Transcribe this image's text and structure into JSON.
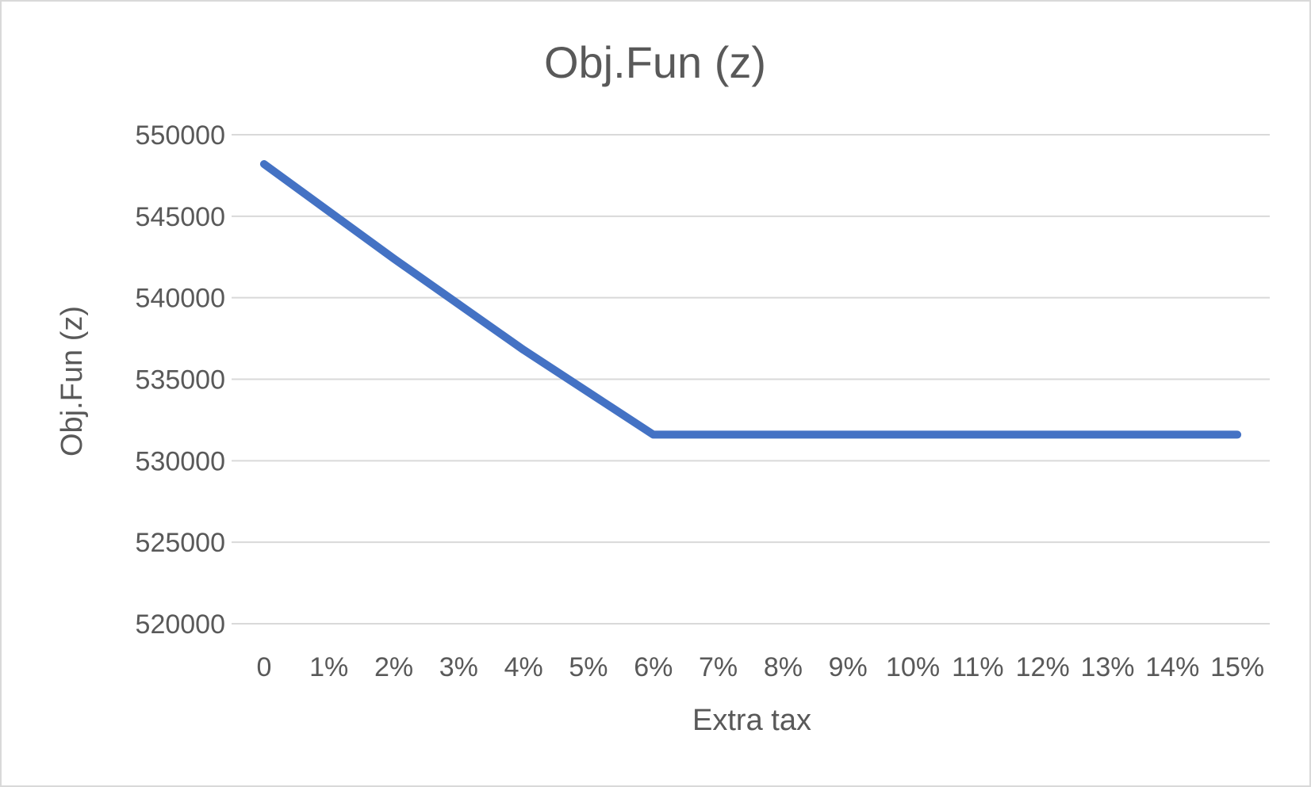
{
  "chart_data": {
    "type": "line",
    "title": "Obj.Fun (z)",
    "xlabel": "Extra tax",
    "ylabel": "Obj.Fun (z)",
    "categories": [
      "0",
      "1%",
      "2%",
      "3%",
      "4%",
      "5%",
      "6%",
      "7%",
      "8%",
      "9%",
      "10%",
      "11%",
      "12%",
      "13%",
      "14%",
      "15%"
    ],
    "yticks": [
      "520000",
      "525000",
      "530000",
      "535000",
      "540000",
      "545000",
      "550000"
    ],
    "ylim": [
      520000,
      550000
    ],
    "grid": true,
    "legend": "none",
    "series": [
      {
        "color": "#4472c4",
        "values": [
          548200,
          545300,
          542400,
          539600,
          536800,
          534200,
          531600,
          531600,
          531600,
          531600,
          531600,
          531600,
          531600,
          531600,
          531600,
          531600
        ]
      }
    ]
  }
}
